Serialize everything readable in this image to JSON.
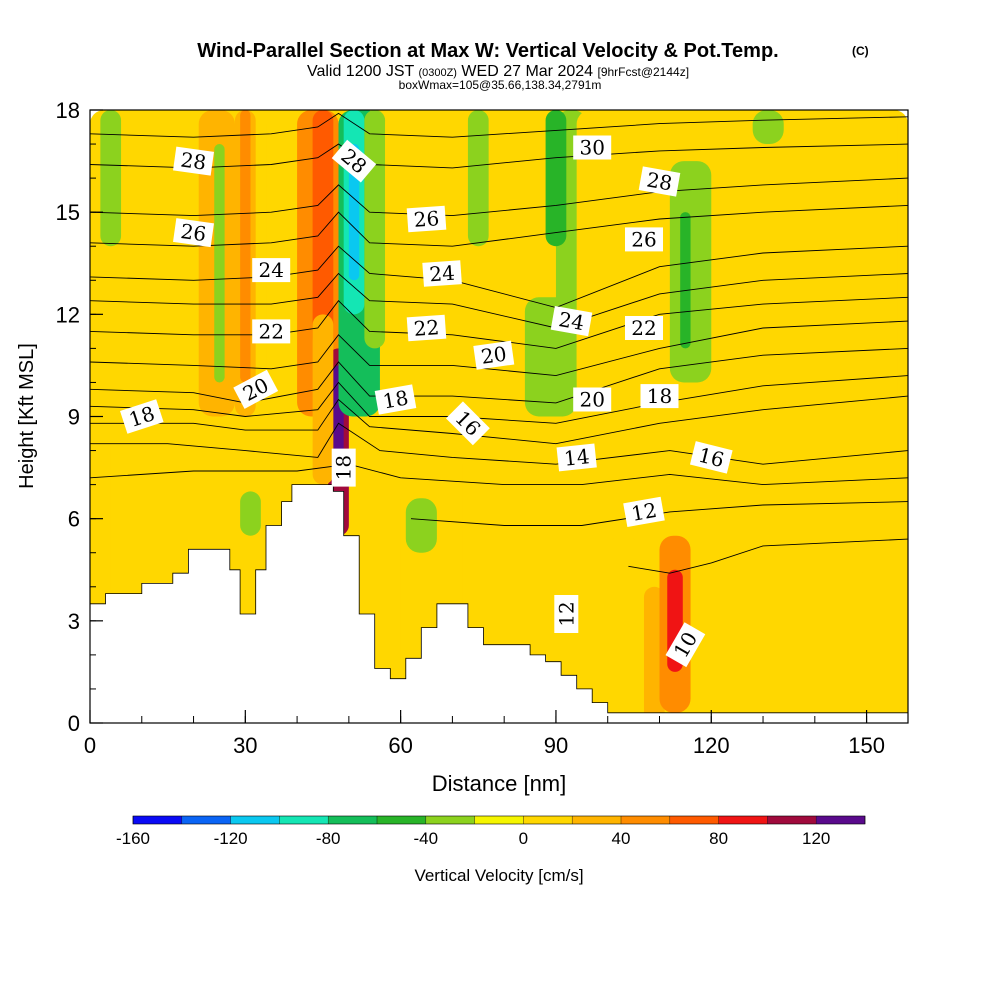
{
  "chart_data": {
    "type": "heatmap",
    "title": "Wind-Parallel Section at Max W: Vertical Velocity & Pot.Temp.",
    "title_mark": "(C)",
    "subtitle": {
      "valid": "Valid 1200 JST",
      "utc": "(0300Z)",
      "date": "WED 27 Mar 2024",
      "fcst": "[9hrFcst@2144z]",
      "box": "boxWmax=105@35.66,138.34,2791m"
    },
    "xlabel": "Distance [nm]",
    "ylabel": "Height [Kft MSL]",
    "xlim": [
      0,
      158
    ],
    "ylim": [
      0,
      18
    ],
    "x_ticks": [
      0,
      30,
      60,
      90,
      120,
      150
    ],
    "y_ticks": [
      0,
      3,
      6,
      9,
      12,
      15,
      18
    ],
    "grid": false,
    "colorbar": {
      "label": "Vertical Velocity [cm/s]",
      "tick_values": [
        -160,
        -120,
        -80,
        -40,
        0,
        40,
        80,
        120
      ],
      "tick_labels": [
        "-160",
        "-120",
        "-80",
        "-40",
        "0",
        "40",
        "80",
        "120"
      ],
      "bins": [
        -160,
        -140,
        -120,
        -100,
        -80,
        -60,
        -40,
        -20,
        0,
        20,
        40,
        60,
        80,
        100,
        120,
        140
      ],
      "colors": [
        "#0a0af5",
        "#0a64f5",
        "#0ac8f0",
        "#14e6b4",
        "#14be5a",
        "#28b428",
        "#8cd21e",
        "#f5f500",
        "#ffd700",
        "#ffb400",
        "#ff8c00",
        "#ff5a00",
        "#f01414",
        "#a00a3c",
        "#5a0a8c"
      ]
    },
    "background_value_color": "#f5f500",
    "vertical_velocity_cells": [
      {
        "x": [
          0,
          158
        ],
        "z": [
          0,
          18
        ],
        "w": 0
      },
      {
        "x": [
          0,
          4
        ],
        "z": [
          0,
          8.5
        ],
        "w": 10
      },
      {
        "x": [
          7,
          14
        ],
        "z": [
          0,
          7.8
        ],
        "w": 10
      },
      {
        "x": [
          10,
          20
        ],
        "z": [
          9,
          18
        ],
        "w": 10
      },
      {
        "x": [
          2,
          6
        ],
        "z": [
          14,
          18
        ],
        "w": -30
      },
      {
        "x": [
          19,
          24
        ],
        "z": [
          0,
          7.5
        ],
        "w": 10
      },
      {
        "x": [
          21,
          28
        ],
        "z": [
          9,
          18
        ],
        "w": 30
      },
      {
        "x": [
          24,
          26
        ],
        "z": [
          10,
          17
        ],
        "w": -30
      },
      {
        "x": [
          28,
          32
        ],
        "z": [
          9,
          18
        ],
        "w": 30
      },
      {
        "x": [
          29,
          31
        ],
        "z": [
          10,
          18
        ],
        "w": 50
      },
      {
        "x": [
          29,
          33
        ],
        "z": [
          5.5,
          6.8
        ],
        "w": -30
      },
      {
        "x": [
          34,
          40
        ],
        "z": [
          9,
          18
        ],
        "w": 10
      },
      {
        "x": [
          40,
          48
        ],
        "z": [
          9,
          18
        ],
        "w": 50
      },
      {
        "x": [
          43,
          47
        ],
        "z": [
          11,
          18
        ],
        "w": 70
      },
      {
        "x": [
          46,
          50
        ],
        "z": [
          5.5,
          11
        ],
        "w": 110
      },
      {
        "x": [
          47,
          49
        ],
        "z": [
          7,
          10.5
        ],
        "w": 130
      },
      {
        "x": [
          43,
          47
        ],
        "z": [
          7,
          12
        ],
        "w": 30
      },
      {
        "x": [
          48,
          56
        ],
        "z": [
          9,
          18
        ],
        "w": -70
      },
      {
        "x": [
          49,
          53
        ],
        "z": [
          12,
          18
        ],
        "w": -90
      },
      {
        "x": [
          50,
          52
        ],
        "z": [
          13,
          17
        ],
        "w": -110
      },
      {
        "x": [
          53,
          57
        ],
        "z": [
          11,
          18
        ],
        "w": -30
      },
      {
        "x": [
          54,
          60
        ],
        "z": [
          1.3,
          7
        ],
        "w": 10
      },
      {
        "x": [
          57,
          64
        ],
        "z": [
          9,
          18
        ],
        "w": 10
      },
      {
        "x": [
          61,
          67
        ],
        "z": [
          5,
          6.6
        ],
        "w": -30
      },
      {
        "x": [
          67,
          76
        ],
        "z": [
          9,
          18
        ],
        "w": 10
      },
      {
        "x": [
          73,
          77
        ],
        "z": [
          14,
          18
        ],
        "w": -30
      },
      {
        "x": [
          72,
          80
        ],
        "z": [
          0,
          8
        ],
        "w": 10
      },
      {
        "x": [
          80,
          86
        ],
        "z": [
          0,
          7.5
        ],
        "w": 10
      },
      {
        "x": [
          84,
          94
        ],
        "z": [
          9,
          12.5
        ],
        "w": -30
      },
      {
        "x": [
          90,
          96
        ],
        "z": [
          12,
          18
        ],
        "w": -30
      },
      {
        "x": [
          88,
          92
        ],
        "z": [
          14,
          18
        ],
        "w": -50
      },
      {
        "x": [
          94,
          102
        ],
        "z": [
          10,
          18
        ],
        "w": 10
      },
      {
        "x": [
          100,
          106
        ],
        "z": [
          0,
          5.5
        ],
        "w": 10
      },
      {
        "x": [
          107,
          111
        ],
        "z": [
          0,
          4
        ],
        "w": 30
      },
      {
        "x": [
          110,
          116
        ],
        "z": [
          0.3,
          5.5
        ],
        "w": 50
      },
      {
        "x": [
          111.5,
          114.5
        ],
        "z": [
          1.5,
          4.5
        ],
        "w": 90
      },
      {
        "x": [
          112,
          120
        ],
        "z": [
          10,
          16.5
        ],
        "w": -30
      },
      {
        "x": [
          114,
          116
        ],
        "z": [
          11,
          15
        ],
        "w": -50
      },
      {
        "x": [
          118,
          124
        ],
        "z": [
          0.3,
          4.5
        ],
        "w": 10
      },
      {
        "x": [
          124,
          130
        ],
        "z": [
          9,
          18
        ],
        "w": 10
      },
      {
        "x": [
          128,
          134
        ],
        "z": [
          17,
          18
        ],
        "w": -30
      },
      {
        "x": [
          140,
          146
        ],
        "z": [
          0.3,
          8
        ],
        "w": 10
      },
      {
        "x": [
          148,
          158
        ],
        "z": [
          0.3,
          4.5
        ],
        "w": 10
      },
      {
        "x": [
          150,
          156
        ],
        "z": [
          9,
          18
        ],
        "w": 10
      }
    ],
    "terrain_profile": {
      "x": [
        0,
        3,
        7,
        10,
        16,
        19,
        23,
        27,
        29,
        32,
        34,
        37,
        39,
        42,
        45,
        47,
        49,
        52,
        55,
        58,
        61,
        64,
        67,
        70,
        73,
        76,
        79,
        82,
        85,
        88,
        91,
        94,
        97,
        100,
        103,
        106,
        109,
        112,
        116,
        120,
        124,
        130,
        140,
        150,
        158
      ],
      "z": [
        3.5,
        3.8,
        3.8,
        4.1,
        4.4,
        5.1,
        5.1,
        4.5,
        3.2,
        4.5,
        5.8,
        6.5,
        7.0,
        7.0,
        7.0,
        6.8,
        5.5,
        3.2,
        1.6,
        1.3,
        1.9,
        2.8,
        3.5,
        3.5,
        2.8,
        2.3,
        2.3,
        2.3,
        2.0,
        1.8,
        1.4,
        1.0,
        0.6,
        0.3,
        0.3,
        0.3,
        0.3,
        0.3,
        0.3,
        0.3,
        0.3,
        0.3,
        0.3,
        0.3,
        0.3
      ]
    },
    "theta_contours": [
      {
        "value": 28,
        "x": [
          0,
          20,
          35,
          44,
          48,
          54,
          70,
          90,
          110,
          130,
          158
        ],
        "z": [
          17.3,
          17.2,
          17.3,
          17.5,
          17.9,
          17.3,
          17.2,
          17.4,
          17.6,
          17.7,
          17.8
        ]
      },
      {
        "value": 27,
        "x": [
          0,
          20,
          35,
          44,
          48,
          54,
          70,
          90,
          110,
          130,
          158
        ],
        "z": [
          16.4,
          16.3,
          16.4,
          16.6,
          17.0,
          16.4,
          16.3,
          16.6,
          16.8,
          16.9,
          17.0
        ]
      },
      {
        "value": 26,
        "x": [
          0,
          20,
          35,
          44,
          48,
          54,
          70,
          90,
          110,
          130,
          158
        ],
        "z": [
          15.0,
          14.9,
          15.0,
          15.2,
          15.8,
          15.0,
          14.9,
          15.2,
          15.6,
          15.8,
          16.0
        ]
      },
      {
        "value": 25,
        "x": [
          0,
          20,
          35,
          44,
          48,
          54,
          70,
          90,
          110,
          130,
          158
        ],
        "z": [
          14.1,
          14.0,
          14.1,
          14.3,
          15.0,
          14.1,
          14.0,
          14.4,
          14.8,
          15.0,
          15.2
        ]
      },
      {
        "value": 24,
        "x": [
          0,
          20,
          35,
          44,
          48,
          54,
          70,
          90,
          110,
          130,
          158
        ],
        "z": [
          13.1,
          13.0,
          13.1,
          13.3,
          14.0,
          13.2,
          13.0,
          12.2,
          13.4,
          13.8,
          14.0
        ]
      },
      {
        "value": 23,
        "x": [
          0,
          20,
          35,
          44,
          48,
          54,
          70,
          90,
          110,
          130,
          158
        ],
        "z": [
          12.4,
          12.3,
          12.3,
          12.5,
          13.2,
          12.4,
          12.3,
          11.6,
          12.6,
          13.0,
          13.2
        ]
      },
      {
        "value": 22,
        "x": [
          0,
          20,
          35,
          44,
          48,
          54,
          70,
          90,
          110,
          130,
          158
        ],
        "z": [
          11.5,
          11.4,
          11.4,
          11.6,
          12.4,
          11.5,
          11.4,
          11.0,
          12.0,
          12.3,
          12.5
        ]
      },
      {
        "value": 21,
        "x": [
          0,
          20,
          35,
          44,
          48,
          54,
          70,
          90,
          110,
          130,
          158
        ],
        "z": [
          10.6,
          10.5,
          10.4,
          10.6,
          11.4,
          10.5,
          10.5,
          10.2,
          11.0,
          11.6,
          11.8
        ]
      },
      {
        "value": 20,
        "x": [
          0,
          20,
          30,
          44,
          48,
          54,
          70,
          90,
          110,
          130,
          158
        ],
        "z": [
          9.8,
          9.7,
          9.4,
          9.8,
          10.6,
          9.6,
          9.6,
          9.4,
          10.4,
          10.8,
          11.0
        ]
      },
      {
        "value": 19,
        "x": [
          0,
          20,
          30,
          44,
          48,
          54,
          70,
          90,
          110,
          130,
          158
        ],
        "z": [
          9.3,
          9.2,
          9.0,
          9.2,
          10.0,
          9.0,
          9.0,
          8.8,
          9.4,
          9.9,
          10.2
        ]
      },
      {
        "value": 18,
        "x": [
          0,
          20,
          30,
          44,
          48,
          54,
          70,
          90,
          110,
          130,
          158
        ],
        "z": [
          8.8,
          8.8,
          8.6,
          8.6,
          9.5,
          8.7,
          8.5,
          8.2,
          8.8,
          9.2,
          9.6
        ]
      },
      {
        "value": 16,
        "x": [
          0,
          15,
          30,
          44,
          48,
          56,
          70,
          90,
          112,
          130,
          158
        ],
        "z": [
          8.2,
          8.2,
          8.0,
          7.8,
          8.8,
          8.0,
          7.8,
          7.6,
          8.0,
          7.6,
          8.0
        ]
      },
      {
        "value": 14,
        "x": [
          0,
          20,
          40,
          50,
          60,
          80,
          95,
          112,
          130,
          158
        ],
        "z": [
          7.2,
          7.4,
          7.4,
          7.6,
          7.2,
          7.0,
          7.0,
          7.3,
          7.0,
          7.2
        ]
      },
      {
        "value": 12,
        "x": [
          62,
          80,
          95,
          112,
          130,
          158
        ],
        "z": [
          6.0,
          5.8,
          5.8,
          6.2,
          6.4,
          6.5
        ]
      },
      {
        "value": 10,
        "x": [
          104,
          112,
          120,
          130,
          158
        ],
        "z": [
          4.6,
          4.4,
          4.7,
          5.2,
          5.4
        ]
      }
    ],
    "contour_labels": [
      {
        "text": "28",
        "x": 20,
        "z": 16.5,
        "angle": 8
      },
      {
        "text": "28",
        "x": 51,
        "z": 16.5,
        "angle": 40
      },
      {
        "text": "30",
        "x": 97,
        "z": 16.9,
        "angle": 0
      },
      {
        "text": "28",
        "x": 110,
        "z": 15.9,
        "angle": 10
      },
      {
        "text": "26",
        "x": 20,
        "z": 14.4,
        "angle": 8
      },
      {
        "text": "26",
        "x": 65,
        "z": 14.8,
        "angle": -4
      },
      {
        "text": "26",
        "x": 107,
        "z": 14.2,
        "angle": 0
      },
      {
        "text": "24",
        "x": 35,
        "z": 13.3,
        "angle": 0
      },
      {
        "text": "24",
        "x": 68,
        "z": 13.2,
        "angle": -4
      },
      {
        "text": "24",
        "x": 93,
        "z": 11.8,
        "angle": 10
      },
      {
        "text": "22",
        "x": 35,
        "z": 11.5,
        "angle": 0
      },
      {
        "text": "22",
        "x": 65,
        "z": 11.6,
        "angle": -4
      },
      {
        "text": "22",
        "x": 107,
        "z": 11.6,
        "angle": 0
      },
      {
        "text": "20",
        "x": 78,
        "z": 10.8,
        "angle": -8
      },
      {
        "text": "20",
        "x": 32,
        "z": 9.8,
        "angle": -28
      },
      {
        "text": "20",
        "x": 97,
        "z": 9.5,
        "angle": 0
      },
      {
        "text": "18",
        "x": 10,
        "z": 9.0,
        "angle": -18
      },
      {
        "text": "18",
        "x": 59,
        "z": 9.5,
        "angle": -10
      },
      {
        "text": "18",
        "x": 110,
        "z": 9.6,
        "angle": 0
      },
      {
        "text": "18",
        "x": 49,
        "z": 7.5,
        "angle": -90
      },
      {
        "text": "16",
        "x": 73,
        "z": 8.8,
        "angle": 45
      },
      {
        "text": "16",
        "x": 120,
        "z": 7.8,
        "angle": 14
      },
      {
        "text": "14",
        "x": 94,
        "z": 7.8,
        "angle": -6
      },
      {
        "text": "12",
        "x": 107,
        "z": 6.2,
        "angle": -10
      },
      {
        "text": "12",
        "x": 92,
        "z": 3.2,
        "angle": -90
      },
      {
        "text": "10",
        "x": 115,
        "z": 2.3,
        "angle": -60
      }
    ]
  }
}
